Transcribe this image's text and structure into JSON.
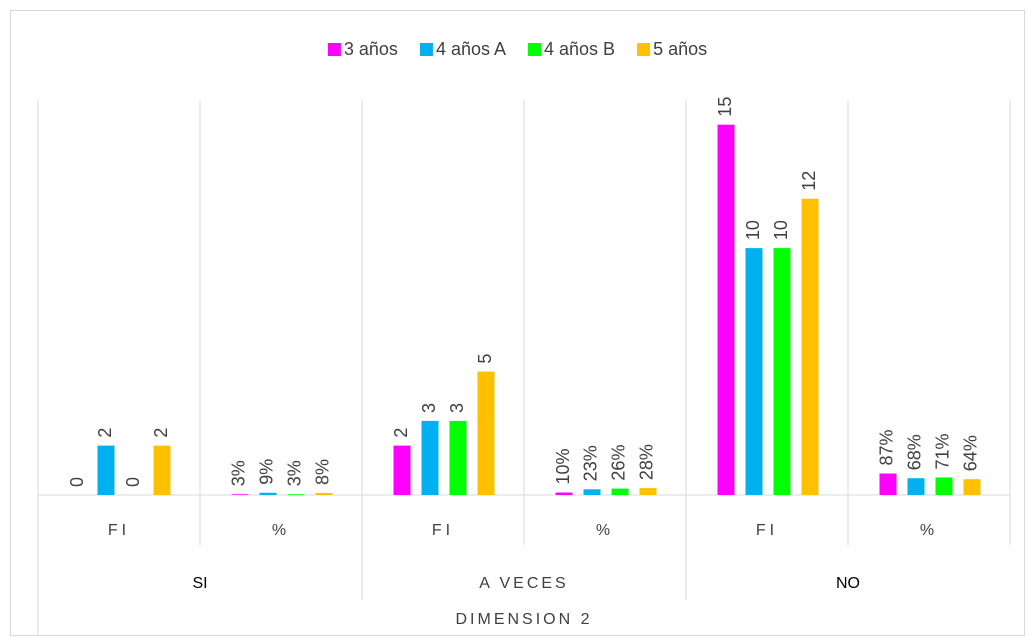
{
  "chart_data": {
    "type": "bar",
    "categories": [
      "FI",
      "%",
      "FI",
      "%",
      "FI",
      "%"
    ],
    "groups": [
      "SI",
      "A VECES",
      "NO"
    ],
    "x_label": "DIMENSION 2",
    "ylim": [
      0,
      16
    ],
    "legend": "top",
    "series": [
      {
        "name": "3 años",
        "color": "#ff00ff",
        "values": [
          0,
          0.03,
          2,
          0.1,
          15,
          0.87
        ],
        "value_labels": [
          "0",
          "3%",
          "2",
          "10%",
          "15",
          "87%"
        ]
      },
      {
        "name": "4 años A",
        "color": "#00b0f0",
        "values": [
          2,
          0.09,
          3,
          0.23,
          10,
          0.68
        ],
        "value_labels": [
          "2",
          "9%",
          "3",
          "23%",
          "10",
          "68%"
        ]
      },
      {
        "name": "4 años B",
        "color": "#00ff00",
        "values": [
          0,
          0.03,
          3,
          0.26,
          10,
          0.71
        ],
        "value_labels": [
          "0",
          "3%",
          "3",
          "26%",
          "10",
          "71%"
        ]
      },
      {
        "name": "5 años",
        "color": "#ffc000",
        "values": [
          2,
          0.08,
          5,
          0.28,
          12,
          0.64
        ],
        "value_labels": [
          "2",
          "8%",
          "5",
          "28%",
          "12",
          "64%"
        ]
      }
    ]
  }
}
